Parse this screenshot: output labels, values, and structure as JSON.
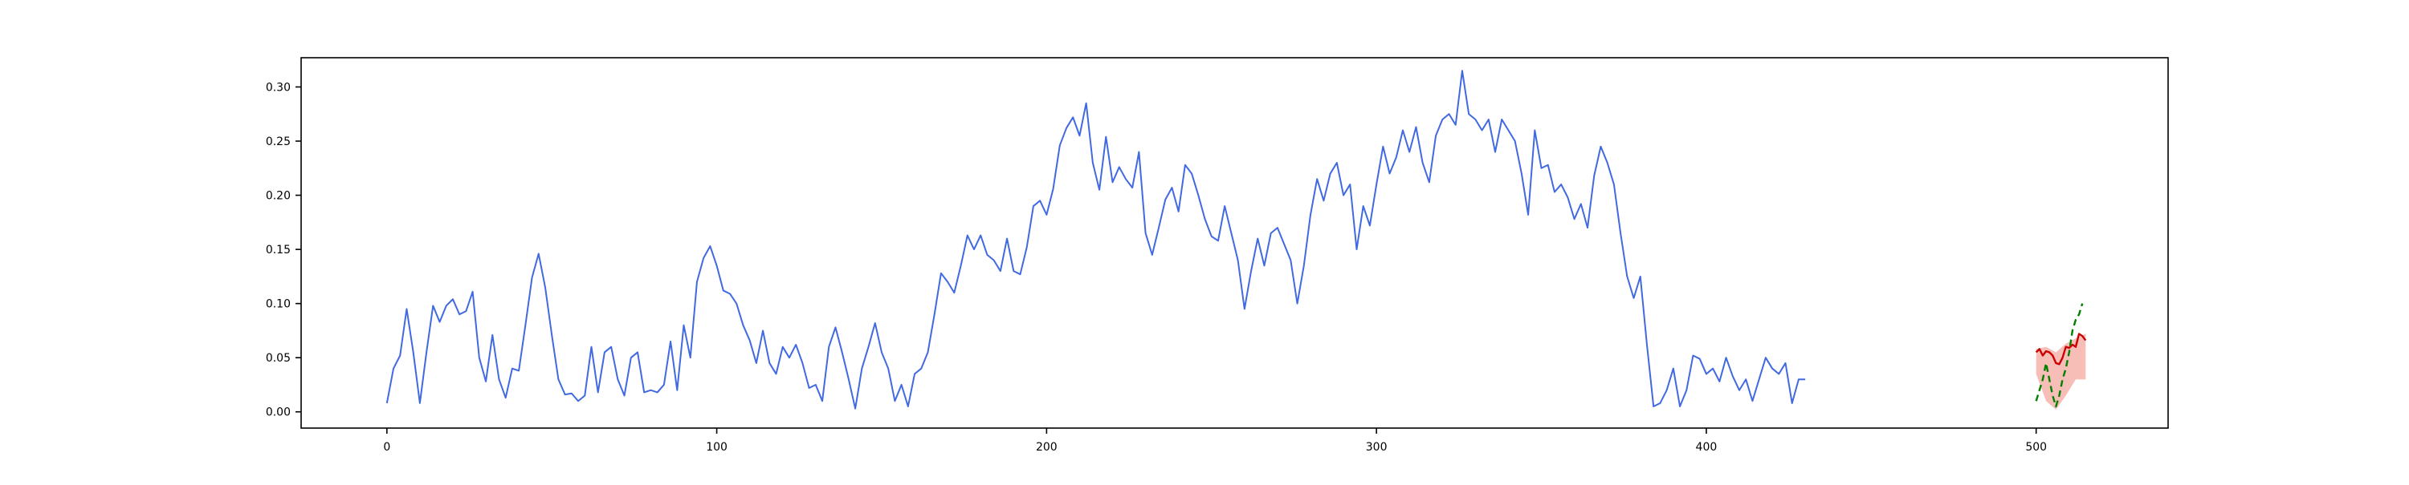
{
  "chart_data": {
    "type": "line",
    "title": "",
    "xlabel": "",
    "ylabel": "",
    "xlim": [
      -26,
      540
    ],
    "ylim": [
      -0.015,
      0.327
    ],
    "grid": false,
    "legend": "none",
    "x_ticks": [
      0,
      100,
      200,
      300,
      400,
      500
    ],
    "y_ticks": [
      0.0,
      0.05,
      0.1,
      0.15,
      0.2,
      0.25,
      0.3
    ],
    "x_tick_labels": [
      "0",
      "100",
      "200",
      "300",
      "400",
      "500"
    ],
    "y_tick_labels": [
      "0.00",
      "0.05",
      "0.10",
      "0.15",
      "0.20",
      "0.25",
      "0.30"
    ],
    "series": [
      {
        "role": "history",
        "color": "#4169e1",
        "points": [
          [
            0,
            0.008
          ],
          [
            2,
            0.04
          ],
          [
            4,
            0.052
          ],
          [
            6,
            0.095
          ],
          [
            8,
            0.055
          ],
          [
            10,
            0.008
          ],
          [
            12,
            0.055
          ],
          [
            14,
            0.098
          ],
          [
            16,
            0.083
          ],
          [
            18,
            0.098
          ],
          [
            20,
            0.104
          ],
          [
            22,
            0.09
          ],
          [
            24,
            0.093
          ],
          [
            26,
            0.111
          ],
          [
            28,
            0.05
          ],
          [
            30,
            0.028
          ],
          [
            32,
            0.071
          ],
          [
            34,
            0.03
          ],
          [
            36,
            0.013
          ],
          [
            38,
            0.04
          ],
          [
            40,
            0.038
          ],
          [
            42,
            0.08
          ],
          [
            44,
            0.124
          ],
          [
            46,
            0.146
          ],
          [
            48,
            0.115
          ],
          [
            50,
            0.071
          ],
          [
            52,
            0.03
          ],
          [
            54,
            0.016
          ],
          [
            56,
            0.017
          ],
          [
            58,
            0.01
          ],
          [
            60,
            0.015
          ],
          [
            62,
            0.06
          ],
          [
            64,
            0.018
          ],
          [
            66,
            0.055
          ],
          [
            68,
            0.06
          ],
          [
            70,
            0.03
          ],
          [
            72,
            0.015
          ],
          [
            74,
            0.05
          ],
          [
            76,
            0.055
          ],
          [
            78,
            0.018
          ],
          [
            80,
            0.02
          ],
          [
            82,
            0.018
          ],
          [
            84,
            0.025
          ],
          [
            86,
            0.065
          ],
          [
            88,
            0.02
          ],
          [
            90,
            0.08
          ],
          [
            92,
            0.05
          ],
          [
            94,
            0.12
          ],
          [
            96,
            0.142
          ],
          [
            98,
            0.153
          ],
          [
            100,
            0.135
          ],
          [
            102,
            0.112
          ],
          [
            104,
            0.109
          ],
          [
            106,
            0.1
          ],
          [
            108,
            0.08
          ],
          [
            110,
            0.066
          ],
          [
            112,
            0.045
          ],
          [
            114,
            0.075
          ],
          [
            116,
            0.045
          ],
          [
            118,
            0.035
          ],
          [
            120,
            0.06
          ],
          [
            122,
            0.05
          ],
          [
            124,
            0.062
          ],
          [
            126,
            0.045
          ],
          [
            128,
            0.022
          ],
          [
            130,
            0.025
          ],
          [
            132,
            0.01
          ],
          [
            134,
            0.06
          ],
          [
            136,
            0.078
          ],
          [
            138,
            0.055
          ],
          [
            140,
            0.03
          ],
          [
            142,
            0.003
          ],
          [
            144,
            0.04
          ],
          [
            146,
            0.06
          ],
          [
            148,
            0.082
          ],
          [
            150,
            0.055
          ],
          [
            152,
            0.04
          ],
          [
            154,
            0.01
          ],
          [
            156,
            0.025
          ],
          [
            158,
            0.005
          ],
          [
            160,
            0.035
          ],
          [
            162,
            0.04
          ],
          [
            164,
            0.055
          ],
          [
            166,
            0.09
          ],
          [
            168,
            0.128
          ],
          [
            170,
            0.12
          ],
          [
            172,
            0.11
          ],
          [
            174,
            0.135
          ],
          [
            176,
            0.163
          ],
          [
            178,
            0.15
          ],
          [
            180,
            0.163
          ],
          [
            182,
            0.145
          ],
          [
            184,
            0.14
          ],
          [
            186,
            0.13
          ],
          [
            188,
            0.16
          ],
          [
            190,
            0.13
          ],
          [
            192,
            0.127
          ],
          [
            194,
            0.152
          ],
          [
            196,
            0.19
          ],
          [
            198,
            0.195
          ],
          [
            200,
            0.182
          ],
          [
            202,
            0.206
          ],
          [
            204,
            0.246
          ],
          [
            206,
            0.262
          ],
          [
            208,
            0.272
          ],
          [
            210,
            0.255
          ],
          [
            212,
            0.285
          ],
          [
            214,
            0.23
          ],
          [
            216,
            0.205
          ],
          [
            218,
            0.254
          ],
          [
            220,
            0.212
          ],
          [
            222,
            0.226
          ],
          [
            224,
            0.215
          ],
          [
            226,
            0.207
          ],
          [
            228,
            0.24
          ],
          [
            230,
            0.165
          ],
          [
            232,
            0.145
          ],
          [
            234,
            0.17
          ],
          [
            236,
            0.196
          ],
          [
            238,
            0.207
          ],
          [
            240,
            0.185
          ],
          [
            242,
            0.228
          ],
          [
            244,
            0.22
          ],
          [
            246,
            0.2
          ],
          [
            248,
            0.178
          ],
          [
            250,
            0.162
          ],
          [
            252,
            0.158
          ],
          [
            254,
            0.19
          ],
          [
            256,
            0.165
          ],
          [
            258,
            0.14
          ],
          [
            260,
            0.095
          ],
          [
            262,
            0.13
          ],
          [
            264,
            0.16
          ],
          [
            266,
            0.135
          ],
          [
            268,
            0.165
          ],
          [
            270,
            0.17
          ],
          [
            272,
            0.155
          ],
          [
            274,
            0.14
          ],
          [
            276,
            0.1
          ],
          [
            278,
            0.135
          ],
          [
            280,
            0.182
          ],
          [
            282,
            0.215
          ],
          [
            284,
            0.195
          ],
          [
            286,
            0.22
          ],
          [
            288,
            0.23
          ],
          [
            290,
            0.2
          ],
          [
            292,
            0.21
          ],
          [
            294,
            0.15
          ],
          [
            296,
            0.19
          ],
          [
            298,
            0.172
          ],
          [
            300,
            0.21
          ],
          [
            302,
            0.245
          ],
          [
            304,
            0.22
          ],
          [
            306,
            0.235
          ],
          [
            308,
            0.26
          ],
          [
            310,
            0.24
          ],
          [
            312,
            0.263
          ],
          [
            314,
            0.23
          ],
          [
            316,
            0.212
          ],
          [
            318,
            0.255
          ],
          [
            320,
            0.27
          ],
          [
            322,
            0.275
          ],
          [
            324,
            0.265
          ],
          [
            326,
            0.315
          ],
          [
            328,
            0.275
          ],
          [
            330,
            0.27
          ],
          [
            332,
            0.26
          ],
          [
            334,
            0.27
          ],
          [
            336,
            0.24
          ],
          [
            338,
            0.27
          ],
          [
            340,
            0.26
          ],
          [
            342,
            0.25
          ],
          [
            344,
            0.22
          ],
          [
            346,
            0.182
          ],
          [
            348,
            0.26
          ],
          [
            350,
            0.225
          ],
          [
            352,
            0.228
          ],
          [
            354,
            0.203
          ],
          [
            356,
            0.21
          ],
          [
            358,
            0.198
          ],
          [
            360,
            0.178
          ],
          [
            362,
            0.192
          ],
          [
            364,
            0.17
          ],
          [
            366,
            0.218
          ],
          [
            368,
            0.245
          ],
          [
            370,
            0.23
          ],
          [
            372,
            0.21
          ],
          [
            374,
            0.165
          ],
          [
            376,
            0.125
          ],
          [
            378,
            0.105
          ],
          [
            380,
            0.125
          ],
          [
            382,
            0.062
          ],
          [
            384,
            0.005
          ],
          [
            386,
            0.008
          ],
          [
            388,
            0.02
          ],
          [
            390,
            0.04
          ],
          [
            392,
            0.005
          ],
          [
            394,
            0.02
          ],
          [
            396,
            0.052
          ],
          [
            398,
            0.049
          ],
          [
            400,
            0.035
          ],
          [
            402,
            0.04
          ],
          [
            404,
            0.028
          ],
          [
            406,
            0.05
          ],
          [
            408,
            0.033
          ],
          [
            410,
            0.02
          ],
          [
            412,
            0.03
          ],
          [
            414,
            0.01
          ],
          [
            416,
            0.03
          ],
          [
            418,
            0.05
          ],
          [
            420,
            0.04
          ],
          [
            422,
            0.035
          ],
          [
            424,
            0.045
          ],
          [
            426,
            0.008
          ],
          [
            428,
            0.03
          ],
          [
            430,
            0.03
          ]
        ]
      },
      {
        "role": "prediction",
        "color": "#cc0000",
        "points": [
          [
            500,
            0.055
          ],
          [
            501,
            0.058
          ],
          [
            502,
            0.052
          ],
          [
            503,
            0.056
          ],
          [
            504,
            0.055
          ],
          [
            505,
            0.052
          ],
          [
            506,
            0.045
          ],
          [
            507,
            0.044
          ],
          [
            508,
            0.05
          ],
          [
            509,
            0.06
          ],
          [
            510,
            0.059
          ],
          [
            511,
            0.062
          ],
          [
            512,
            0.06
          ],
          [
            513,
            0.072
          ],
          [
            514,
            0.07
          ],
          [
            515,
            0.066
          ]
        ]
      },
      {
        "role": "ground-truth",
        "color": "#008000",
        "dashed": true,
        "points": [
          [
            500,
            0.01
          ],
          [
            501,
            0.02
          ],
          [
            502,
            0.03
          ],
          [
            503,
            0.045
          ],
          [
            504,
            0.03
          ],
          [
            505,
            0.015
          ],
          [
            506,
            0.005
          ],
          [
            507,
            0.015
          ],
          [
            508,
            0.03
          ],
          [
            509,
            0.04
          ],
          [
            510,
            0.055
          ],
          [
            511,
            0.075
          ],
          [
            512,
            0.085
          ],
          [
            513,
            0.09
          ],
          [
            514,
            0.1
          ]
        ]
      }
    ],
    "band": {
      "color": "#f4a8a0",
      "upper": [
        [
          500,
          0.058
        ],
        [
          503,
          0.06
        ],
        [
          506,
          0.055
        ],
        [
          509,
          0.063
        ],
        [
          512,
          0.068
        ],
        [
          515,
          0.072
        ]
      ],
      "lower": [
        [
          500,
          0.035
        ],
        [
          503,
          0.01
        ],
        [
          506,
          0.002
        ],
        [
          509,
          0.015
        ],
        [
          512,
          0.03
        ],
        [
          515,
          0.03
        ]
      ]
    }
  }
}
